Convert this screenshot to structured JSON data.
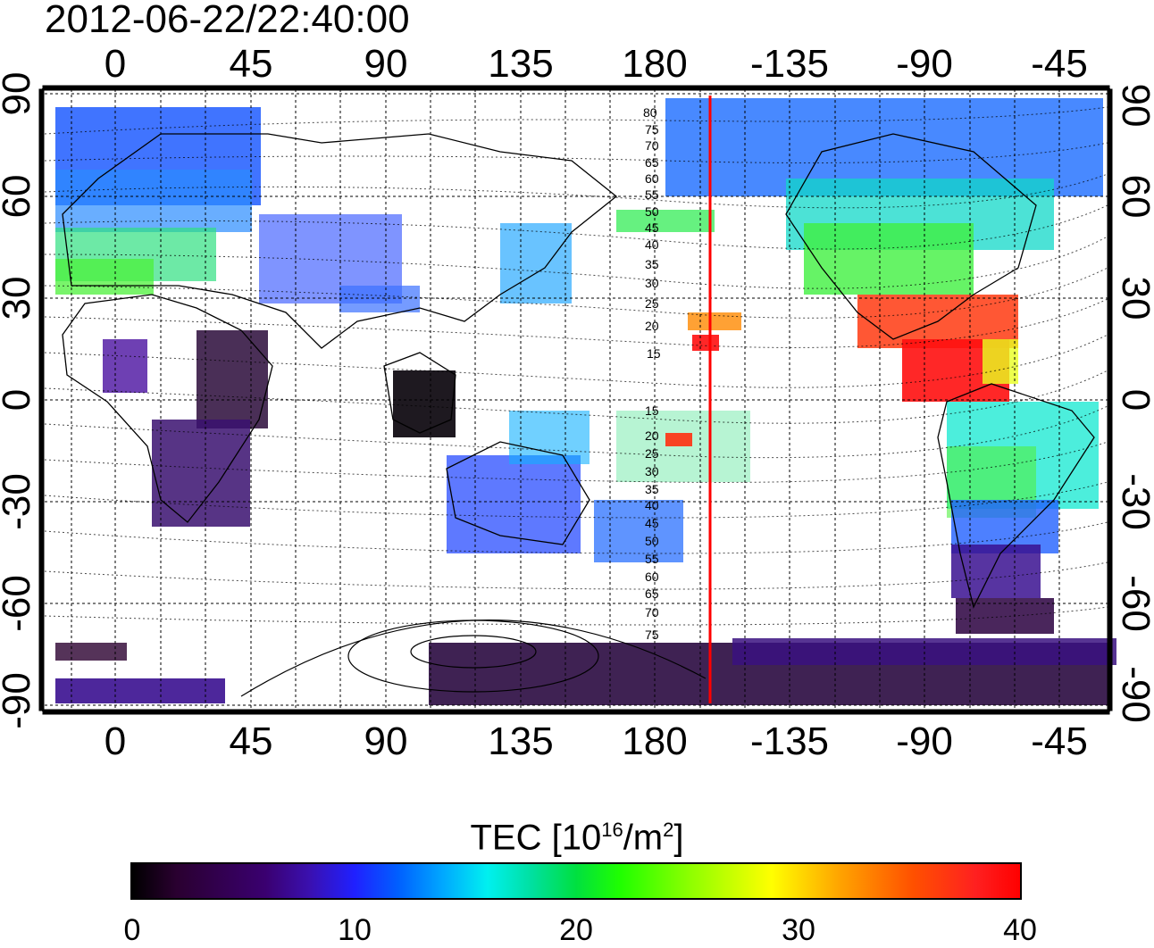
{
  "title": "2012-06-22/22:40:00",
  "top_lon_labels": [
    "0",
    "45",
    "90",
    "135",
    "180",
    "-135",
    "-90",
    "-45"
  ],
  "bottom_lon_labels": [
    "0",
    "45",
    "90",
    "135",
    "180",
    "-135",
    "-90",
    "-45"
  ],
  "left_lat_labels": [
    "90",
    "60",
    "30",
    "0",
    "-30",
    "-60",
    "-90"
  ],
  "right_lat_labels": [
    "90",
    "60",
    "30",
    "0",
    "-30",
    "-60",
    "-90"
  ],
  "mlat_upper": [
    "80",
    "75",
    "70",
    "65",
    "60",
    "55",
    "50",
    "45",
    "40",
    "35",
    "30",
    "25",
    "20",
    "15"
  ],
  "mlat_lower": [
    "15",
    "20",
    "25",
    "30",
    "35",
    "40",
    "45",
    "50",
    "55",
    "60",
    "65",
    "70",
    "75"
  ],
  "colorbar": {
    "title": "TEC  [10",
    "exp": "16",
    "unit_mid": "/m",
    "unit_exp": "2",
    "unit_end": "]",
    "ticks": [
      "0",
      "10",
      "20",
      "30",
      "40"
    ],
    "min": 0,
    "max": 40
  },
  "colors": {
    "terminator": "#ff0000"
  }
}
